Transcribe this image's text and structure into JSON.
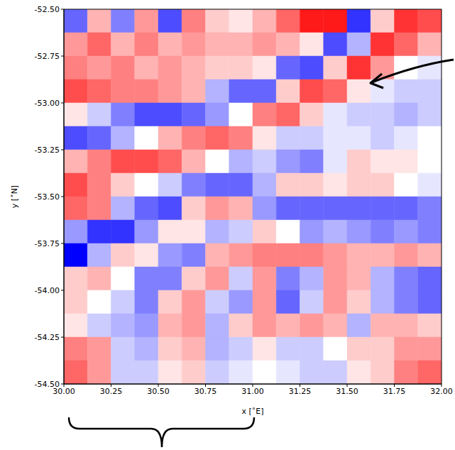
{
  "chart_data": {
    "type": "heatmap",
    "x_label": "x [˚E]",
    "y_label": "y [˚N]",
    "xlim": [
      30,
      32
    ],
    "ylim": [
      -54.5,
      -52.5
    ],
    "xticks": [
      {
        "value": 30,
        "label": "30.00"
      },
      {
        "value": 30.25,
        "label": "30.25"
      },
      {
        "value": 30.5,
        "label": "30.50"
      },
      {
        "value": 30.75,
        "label": "30.75"
      },
      {
        "value": 31,
        "label": "31.00"
      },
      {
        "value": 31.25,
        "label": "31.25"
      },
      {
        "value": 31.5,
        "label": "31.50"
      },
      {
        "value": 31.75,
        "label": "31.75"
      },
      {
        "value": 32,
        "label": "32.00"
      }
    ],
    "yticks": [
      {
        "value": -52.5,
        "label": "-52.50"
      },
      {
        "value": -52.75,
        "label": "-52.75"
      },
      {
        "value": -53,
        "label": "-53.00"
      },
      {
        "value": -53.25,
        "label": "-53.25"
      },
      {
        "value": -53.5,
        "label": "-53.50"
      },
      {
        "value": -53.75,
        "label": "-53.75"
      },
      {
        "value": -54,
        "label": "-54.00"
      },
      {
        "value": -54.25,
        "label": "-54.25"
      },
      {
        "value": -54.5,
        "label": "-54.50"
      }
    ],
    "cells": {
      "x_edges": [
        30,
        30.125,
        30.25,
        30.375,
        30.5,
        30.625,
        30.75,
        30.875,
        31,
        31.125,
        31.25,
        31.375,
        31.5,
        31.625,
        31.75,
        31.875,
        32
      ],
      "y_edges": [
        -52.5,
        -52.625,
        -52.75,
        -52.875,
        -53,
        -53.125,
        -53.25,
        -53.375,
        -53.5,
        -53.625,
        -53.75,
        -53.875,
        -54,
        -54.125,
        -54.25,
        -54.375,
        -54.5
      ],
      "range": [
        -1,
        1
      ],
      "values": [
        [
          -0.6,
          0.3,
          -0.5,
          0.4,
          -0.7,
          0.5,
          0.2,
          0.1,
          0.3,
          0.6,
          0.9,
          0.9,
          -0.8,
          0.2,
          0.8,
          0.7
        ],
        [
          0.4,
          0.6,
          0.3,
          0.5,
          0.3,
          0.4,
          0.3,
          0.3,
          0.4,
          0.3,
          0.1,
          -0.7,
          -0.3,
          0.8,
          0.6,
          0.3
        ],
        [
          0.5,
          0.4,
          0.5,
          0.3,
          0.4,
          0.3,
          0.2,
          0.2,
          0.1,
          -0.6,
          -0.7,
          0.2,
          0.8,
          0.4,
          0.0,
          -0.1
        ],
        [
          0.7,
          0.6,
          0.5,
          0.5,
          0.4,
          0.3,
          -0.3,
          -0.6,
          -0.6,
          0.2,
          0.7,
          0.6,
          0.1,
          -0.1,
          -0.2,
          -0.2
        ],
        [
          0.1,
          -0.2,
          -0.5,
          -0.7,
          -0.7,
          -0.6,
          -0.4,
          0.0,
          0.5,
          0.6,
          0.2,
          -0.1,
          -0.2,
          -0.2,
          -0.3,
          -0.2
        ],
        [
          -0.7,
          -0.6,
          -0.3,
          0.0,
          0.3,
          0.5,
          0.6,
          0.5,
          0.1,
          -0.2,
          -0.2,
          -0.1,
          -0.1,
          -0.2,
          -0.1,
          0.0
        ],
        [
          0.3,
          0.5,
          0.7,
          0.7,
          0.6,
          0.3,
          0.0,
          -0.3,
          -0.2,
          -0.4,
          -0.5,
          -0.1,
          0.2,
          0.1,
          0.1,
          0.0
        ],
        [
          0.7,
          0.5,
          0.2,
          0.0,
          -0.2,
          -0.5,
          -0.6,
          -0.6,
          -0.3,
          0.2,
          0.2,
          0.1,
          0.2,
          0.2,
          0.0,
          -0.1
        ],
        [
          0.6,
          0.5,
          -0.3,
          -0.6,
          -0.7,
          0.2,
          0.4,
          0.3,
          -0.4,
          -0.6,
          -0.6,
          -0.6,
          -0.6,
          -0.6,
          -0.6,
          -0.5
        ],
        [
          -0.4,
          -0.8,
          -0.8,
          -0.4,
          0.1,
          0.1,
          -0.3,
          -0.2,
          0.2,
          0.0,
          -0.4,
          -0.3,
          -0.4,
          -0.5,
          -0.4,
          -0.5
        ],
        [
          -1.0,
          -0.3,
          0.2,
          0.1,
          -0.4,
          -0.5,
          0.3,
          0.4,
          0.5,
          0.5,
          0.5,
          0.4,
          0.3,
          0.3,
          0.4,
          0.3
        ],
        [
          0.2,
          0.3,
          0.0,
          -0.5,
          -0.5,
          0.2,
          0.4,
          -0.2,
          0.4,
          -0.5,
          -0.3,
          0.4,
          0.3,
          -0.3,
          -0.5,
          -0.6
        ],
        [
          0.2,
          0.0,
          -0.2,
          -0.5,
          0.2,
          0.4,
          -0.2,
          -0.4,
          0.4,
          -0.6,
          -0.2,
          0.4,
          0.2,
          -0.3,
          -0.5,
          -0.6
        ],
        [
          0.1,
          -0.2,
          -0.3,
          -0.4,
          0.3,
          0.4,
          -0.3,
          0.2,
          0.4,
          0.3,
          0.4,
          0.3,
          -0.3,
          0.3,
          0.3,
          0.2
        ],
        [
          0.5,
          0.4,
          -0.2,
          -0.3,
          0.2,
          0.3,
          -0.3,
          -0.2,
          0.1,
          -0.2,
          -0.2,
          0.0,
          0.2,
          0.2,
          0.4,
          0.4
        ],
        [
          0.6,
          0.4,
          -0.2,
          -0.2,
          0.1,
          0.2,
          -0.2,
          -0.1,
          0.0,
          -0.1,
          -0.2,
          -0.2,
          0.1,
          0.2,
          0.5,
          0.6
        ]
      ]
    }
  }
}
